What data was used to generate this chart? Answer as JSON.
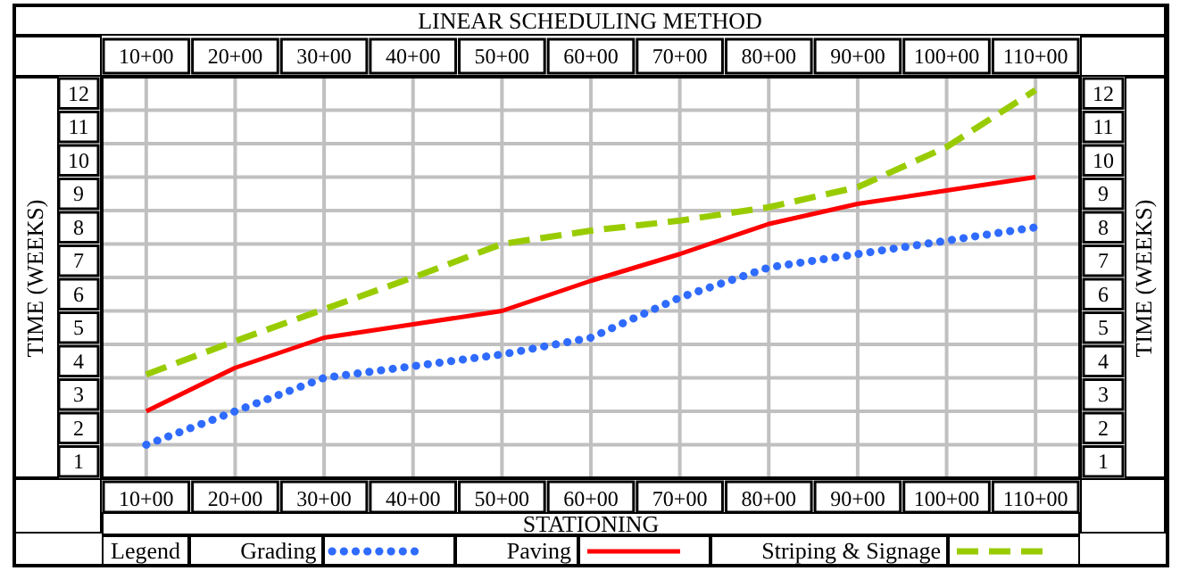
{
  "chart_data": {
    "type": "line",
    "title": "LINEAR SCHEDULING METHOD",
    "xlabel": "STATIONING",
    "ylabel": "TIME (WEEKS)",
    "y2label": "TIME (WEEKS)",
    "legend_title": "Legend",
    "categories": [
      "10+00",
      "20+00",
      "30+00",
      "40+00",
      "50+00",
      "60+00",
      "70+00",
      "80+00",
      "90+00",
      "100+00",
      "110+00"
    ],
    "ylim": [
      1,
      13
    ],
    "yticks": [
      1,
      2,
      3,
      4,
      5,
      6,
      7,
      8,
      9,
      10,
      11,
      12
    ],
    "y2lim": [
      1,
      13
    ],
    "y2ticks": [
      1,
      2,
      3,
      4,
      5,
      6,
      7,
      8,
      9,
      10,
      11,
      12
    ],
    "grid": true,
    "legend": "bottom",
    "marker": "none",
    "series": [
      {
        "name": "Grading",
        "color": "#2f6bff",
        "line_style": "dotted",
        "values": [
          2,
          3,
          4,
          4.35,
          4.7,
          5.2,
          6.4,
          7.3,
          7.7,
          8.1,
          8.5
        ]
      },
      {
        "name": "Paving",
        "color": "#ff0000",
        "line_style": "solid",
        "values": [
          3,
          4.3,
          5.2,
          5.6,
          6,
          6.9,
          7.7,
          8.6,
          9.2,
          9.6,
          10
        ]
      },
      {
        "name": "Striping & Signage",
        "color": "#99cc00",
        "line_style": "dashed",
        "values": [
          4.1,
          5.1,
          6.05,
          7,
          8,
          8.4,
          8.7,
          9.1,
          9.7,
          10.9,
          12.6
        ]
      }
    ]
  }
}
